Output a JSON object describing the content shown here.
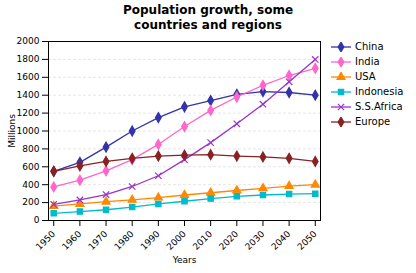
{
  "chart_data": {
    "type": "line",
    "title": "Population growth, some\ncountries and regions",
    "xlabel": "Years",
    "ylabel": "Millions",
    "x": [
      1950,
      1960,
      1970,
      1980,
      1990,
      2000,
      2010,
      2020,
      2030,
      2040,
      2050
    ],
    "series": [
      {
        "name": "China",
        "color": "#3333AA",
        "marker": "diamond",
        "values": [
          550,
          650,
          820,
          1000,
          1150,
          1270,
          1340,
          1410,
          1440,
          1430,
          1400
        ]
      },
      {
        "name": "India",
        "color": "#FF66CC",
        "marker": "diamond",
        "values": [
          375,
          450,
          555,
          680,
          850,
          1050,
          1230,
          1380,
          1510,
          1620,
          1700
        ]
      },
      {
        "name": "USA",
        "color": "#FF8800",
        "marker": "triangle",
        "values": [
          160,
          185,
          210,
          230,
          255,
          285,
          310,
          335,
          360,
          385,
          400
        ]
      },
      {
        "name": "Indonesia",
        "color": "#00BBCC",
        "marker": "square",
        "values": [
          80,
          100,
          120,
          150,
          185,
          215,
          245,
          270,
          285,
          295,
          300
        ]
      },
      {
        "name": "S.S.Africa",
        "color": "#9933CC",
        "marker": "x",
        "values": [
          180,
          230,
          290,
          380,
          500,
          680,
          870,
          1080,
          1300,
          1550,
          1800
        ]
      },
      {
        "name": "Europe",
        "color": "#882222",
        "marker": "diamond",
        "values": [
          550,
          610,
          660,
          695,
          720,
          730,
          735,
          720,
          710,
          695,
          660
        ]
      }
    ],
    "xlim": [
      1948,
      2052
    ],
    "xticks": [
      1950,
      1960,
      1970,
      1980,
      1990,
      2000,
      2010,
      2020,
      2030,
      2040,
      2050
    ],
    "ylim": [
      0,
      2000
    ],
    "yticks": [
      0,
      200,
      400,
      600,
      800,
      1000,
      1200,
      1400,
      1600,
      1800,
      2000
    ],
    "grid": true,
    "legend": "right"
  }
}
